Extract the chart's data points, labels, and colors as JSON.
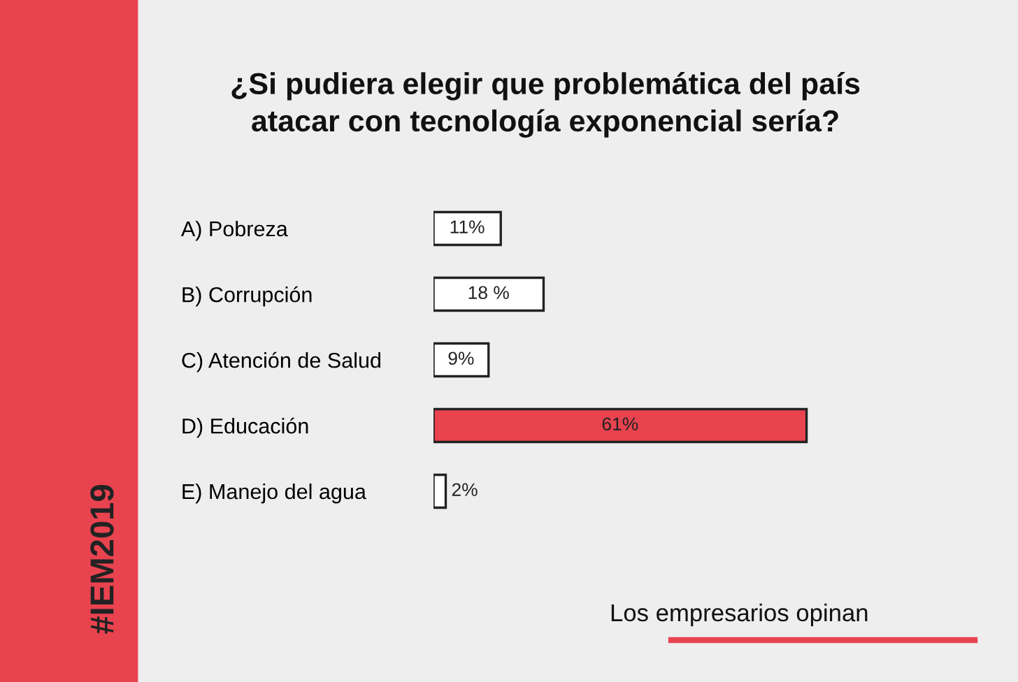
{
  "chart_data": {
    "type": "bar",
    "orientation": "horizontal",
    "title": "¿Si pudiera elegir que problemática del país\natacar con tecnología exponencial sería?",
    "categories": [
      "A) Pobreza",
      "B) Corrupción",
      "C) Atención de Salud",
      "D) Educación",
      "E) Manejo del agua"
    ],
    "values": [
      11,
      18,
      9,
      61,
      2
    ],
    "value_labels": [
      "11%",
      "18 %",
      "9%",
      "61%",
      "2%"
    ],
    "colors": [
      "#ffffff",
      "#ffffff",
      "#ffffff",
      "#e8434f",
      "#ffffff"
    ],
    "tick_labels": "y",
    "grid": false,
    "legend": false,
    "annotations": [
      "#IEM2019",
      "Los empresarios opinan"
    ]
  }
}
